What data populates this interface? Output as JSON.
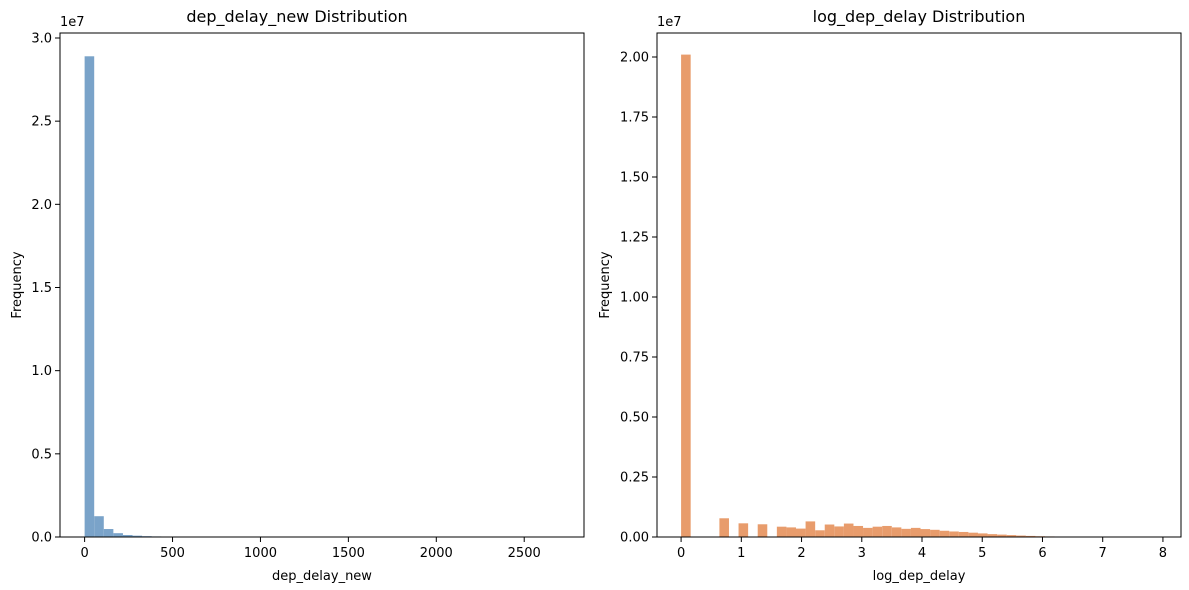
{
  "chart_data": [
    {
      "type": "bar",
      "title": "dep_delay_new Distribution",
      "xlabel": "dep_delay_new",
      "ylabel": "Frequency",
      "y_offset_label": "1e7",
      "xlim": [
        -140,
        2840
      ],
      "ylim": [
        0,
        30300000.0
      ],
      "xticks": [
        0,
        500,
        1000,
        1500,
        2000,
        2500
      ],
      "yticks": [
        0,
        5000000.0,
        10000000.0,
        15000000.0,
        20000000.0,
        25000000.0,
        30000000.0
      ],
      "ytick_labels": [
        "0.0",
        "0.5",
        "1.0",
        "1.5",
        "2.0",
        "2.5",
        "3.0"
      ],
      "bin_width": 54.5,
      "bin_start": 0,
      "color": "#7aa3c9",
      "values": [
        28900000,
        1250000,
        480000,
        230000,
        120000,
        80000,
        50000,
        35000,
        25000,
        16000,
        10000,
        7000,
        5000,
        3000,
        2000,
        1500,
        1000,
        700,
        500,
        400,
        300,
        200,
        150,
        120,
        100,
        80,
        60,
        50,
        40,
        30,
        25,
        20,
        15,
        12,
        10,
        8,
        6,
        5,
        4,
        3,
        3,
        2,
        2,
        1,
        1,
        1,
        1,
        1,
        1,
        1
      ]
    },
    {
      "type": "bar",
      "title": "log_dep_delay Distribution",
      "xlabel": "log_dep_delay",
      "ylabel": "Frequency",
      "y_offset_label": "1e7",
      "xlim": [
        -0.4,
        8.3
      ],
      "ylim": [
        0,
        21000000.0
      ],
      "xticks": [
        0,
        1,
        2,
        3,
        4,
        5,
        6,
        7,
        8
      ],
      "yticks": [
        0,
        2500000.0,
        5000000.0,
        7500000.0,
        10000000.0,
        12500000.0,
        15000000.0,
        17500000.0,
        20000000.0
      ],
      "ytick_labels": [
        "0.00",
        "0.25",
        "0.50",
        "0.75",
        "1.00",
        "1.25",
        "1.50",
        "1.75",
        "2.00"
      ],
      "bin_width": 0.159,
      "bin_start": 0,
      "color": "#e89c6c",
      "values": [
        20100000,
        0,
        0,
        0,
        780000,
        0,
        570000,
        0,
        530000,
        0,
        430000,
        400000,
        350000,
        650000,
        280000,
        520000,
        440000,
        560000,
        460000,
        380000,
        430000,
        460000,
        400000,
        340000,
        380000,
        330000,
        300000,
        260000,
        230000,
        210000,
        180000,
        150000,
        120000,
        100000,
        80000,
        60000,
        45000,
        32000,
        24000,
        17000,
        12000,
        8000,
        5000,
        3000,
        2000,
        1000,
        500,
        300,
        100,
        0
      ]
    }
  ]
}
